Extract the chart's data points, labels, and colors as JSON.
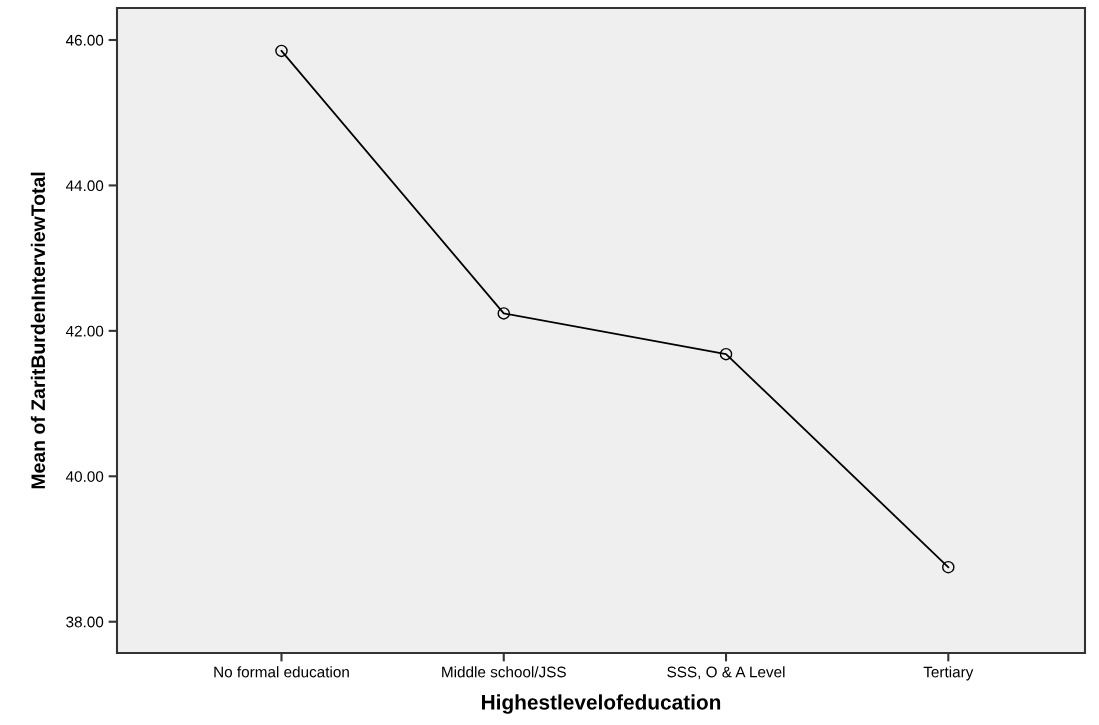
{
  "chart_data": {
    "type": "line",
    "xlabel": "Highestlevelofeducation",
    "ylabel": "Mean of ZaritBurdenInterviewTotal",
    "categories": [
      "No formal education",
      "Middle school/JSS",
      "SSS, O & A Level",
      "Tertiary"
    ],
    "series": [
      {
        "color": "#000000",
        "values": [
          45.85,
          42.24,
          41.68,
          38.75
        ]
      }
    ],
    "ylim": [
      37.57,
      46.44
    ],
    "yticks": [
      {
        "value": 38,
        "label": "38.00"
      },
      {
        "value": 40,
        "label": "40.00"
      },
      {
        "value": 42,
        "label": "42.00"
      },
      {
        "value": 44,
        "label": "44.00"
      },
      {
        "value": 46,
        "label": "46.00"
      }
    ],
    "marker": "circle",
    "line_style": "solid",
    "grid": false
  }
}
